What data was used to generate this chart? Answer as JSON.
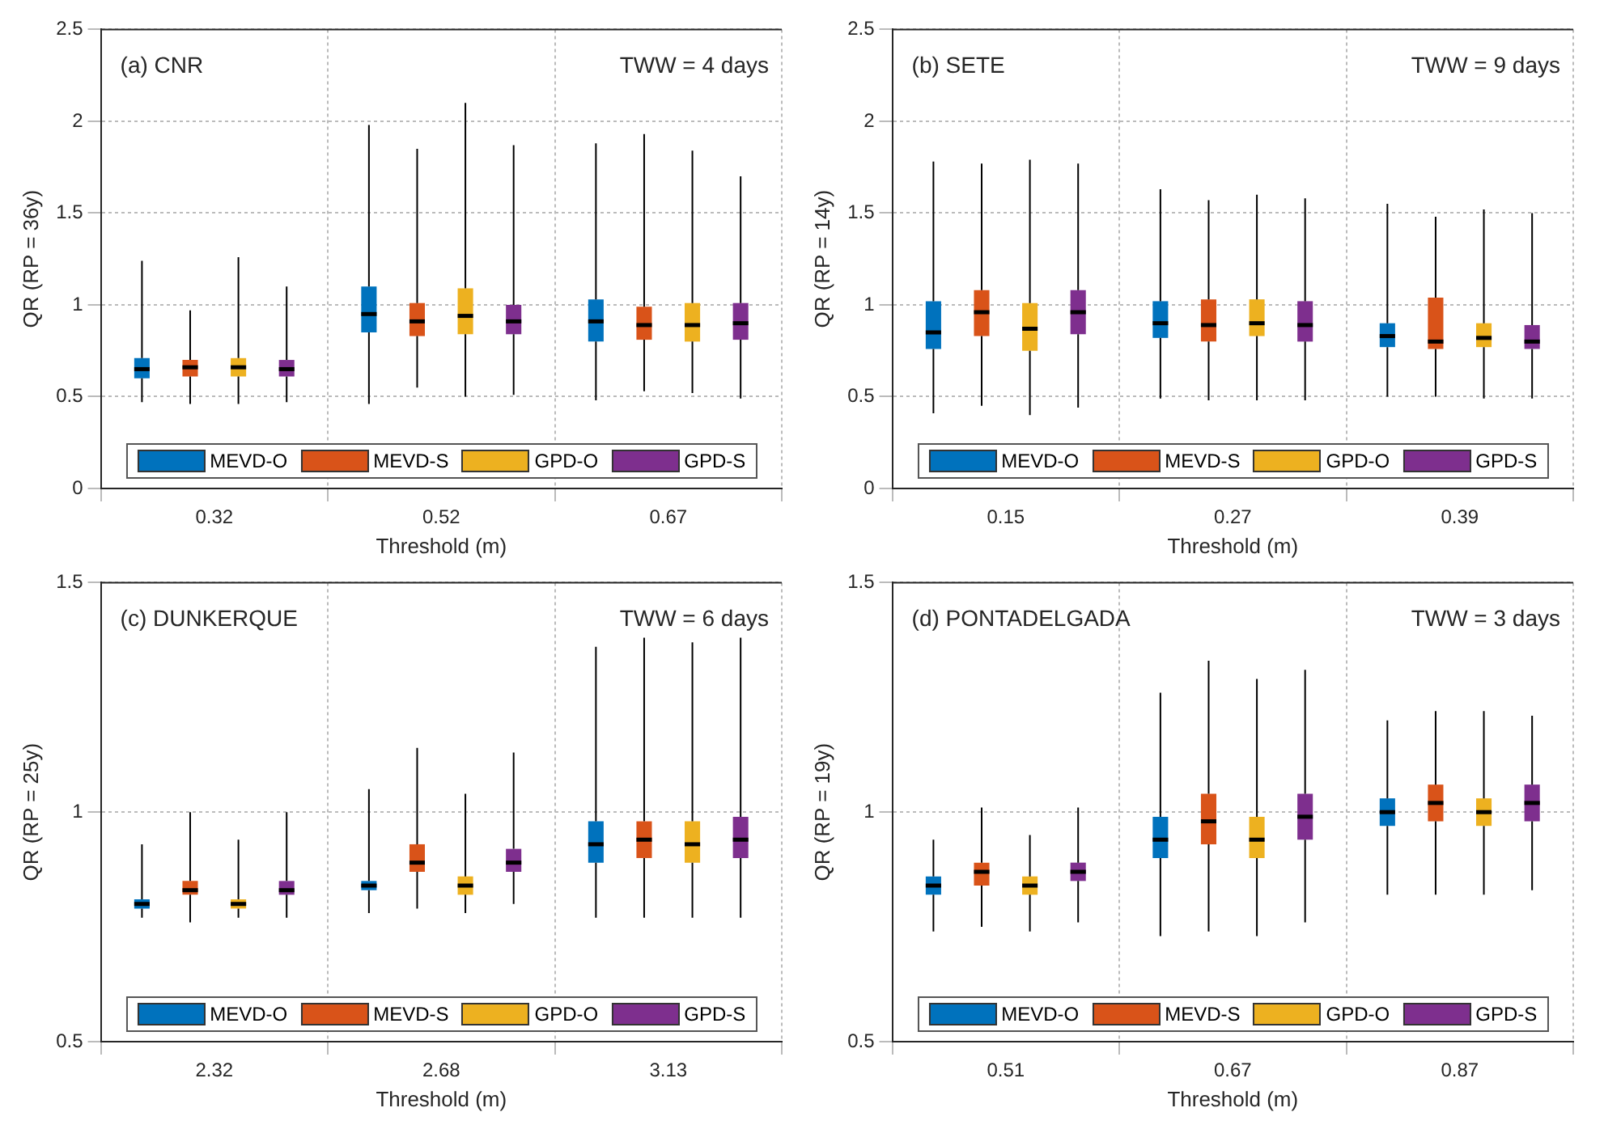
{
  "chart_data": [
    {
      "type": "box",
      "annotations": [
        "(a) CNR",
        "TWW = 4 days"
      ],
      "xlabel": "Threshold (m)",
      "ylabel": "QR (RP = 36y)",
      "categories": [
        "0.32",
        "0.52",
        "0.67"
      ],
      "ylim": [
        0,
        2.5
      ],
      "yticks": [
        0,
        0.5,
        1,
        1.5,
        2,
        2.5
      ],
      "grid": true,
      "legend": "bottom",
      "series": [
        {
          "name": "MEVD-O",
          "color": "#0072bd",
          "boxes": [
            {
              "low": 0.47,
              "q1": 0.6,
              "median": 0.65,
              "q3": 0.71,
              "high": 1.24
            },
            {
              "low": 0.46,
              "q1": 0.85,
              "median": 0.95,
              "q3": 1.1,
              "high": 1.98
            },
            {
              "low": 0.48,
              "q1": 0.8,
              "median": 0.91,
              "q3": 1.03,
              "high": 1.88
            }
          ]
        },
        {
          "name": "MEVD-S",
          "color": "#d95319",
          "boxes": [
            {
              "low": 0.46,
              "q1": 0.61,
              "median": 0.66,
              "q3": 0.7,
              "high": 0.97
            },
            {
              "low": 0.55,
              "q1": 0.83,
              "median": 0.91,
              "q3": 1.01,
              "high": 1.85
            },
            {
              "low": 0.53,
              "q1": 0.81,
              "median": 0.89,
              "q3": 0.99,
              "high": 1.93
            }
          ]
        },
        {
          "name": "GPD-O",
          "color": "#edb120",
          "boxes": [
            {
              "low": 0.46,
              "q1": 0.61,
              "median": 0.66,
              "q3": 0.71,
              "high": 1.26
            },
            {
              "low": 0.5,
              "q1": 0.84,
              "median": 0.94,
              "q3": 1.09,
              "high": 2.1
            },
            {
              "low": 0.52,
              "q1": 0.8,
              "median": 0.89,
              "q3": 1.01,
              "high": 1.84
            }
          ]
        },
        {
          "name": "GPD-S",
          "color": "#7e2f8e",
          "boxes": [
            {
              "low": 0.47,
              "q1": 0.61,
              "median": 0.65,
              "q3": 0.7,
              "high": 1.1
            },
            {
              "low": 0.51,
              "q1": 0.84,
              "median": 0.91,
              "q3": 1.0,
              "high": 1.87
            },
            {
              "low": 0.49,
              "q1": 0.81,
              "median": 0.9,
              "q3": 1.01,
              "high": 1.7
            }
          ]
        }
      ]
    },
    {
      "type": "box",
      "annotations": [
        "(b) SETE",
        "TWW = 9 days"
      ],
      "xlabel": "Threshold (m)",
      "ylabel": "QR (RP = 14y)",
      "categories": [
        "0.15",
        "0.27",
        "0.39"
      ],
      "ylim": [
        0,
        2.5
      ],
      "yticks": [
        0,
        0.5,
        1,
        1.5,
        2,
        2.5
      ],
      "grid": true,
      "legend": "bottom",
      "series": [
        {
          "name": "MEVD-O",
          "color": "#0072bd",
          "boxes": [
            {
              "low": 0.41,
              "q1": 0.76,
              "median": 0.85,
              "q3": 1.02,
              "high": 1.78
            },
            {
              "low": 0.49,
              "q1": 0.82,
              "median": 0.9,
              "q3": 1.02,
              "high": 1.63
            },
            {
              "low": 0.5,
              "q1": 0.77,
              "median": 0.83,
              "q3": 0.9,
              "high": 1.55
            }
          ]
        },
        {
          "name": "MEVD-S",
          "color": "#d95319",
          "boxes": [
            {
              "low": 0.45,
              "q1": 0.83,
              "median": 0.96,
              "q3": 1.08,
              "high": 1.77
            },
            {
              "low": 0.48,
              "q1": 0.8,
              "median": 0.89,
              "q3": 1.03,
              "high": 1.57
            },
            {
              "low": 0.5,
              "q1": 0.76,
              "median": 0.8,
              "q3": 1.04,
              "high": 1.48
            }
          ]
        },
        {
          "name": "GPD-O",
          "color": "#edb120",
          "boxes": [
            {
              "low": 0.4,
              "q1": 0.75,
              "median": 0.87,
              "q3": 1.01,
              "high": 1.79
            },
            {
              "low": 0.48,
              "q1": 0.83,
              "median": 0.9,
              "q3": 1.03,
              "high": 1.6
            },
            {
              "low": 0.49,
              "q1": 0.77,
              "median": 0.82,
              "q3": 0.9,
              "high": 1.52
            }
          ]
        },
        {
          "name": "GPD-S",
          "color": "#7e2f8e",
          "boxes": [
            {
              "low": 0.44,
              "q1": 0.84,
              "median": 0.96,
              "q3": 1.08,
              "high": 1.77
            },
            {
              "low": 0.48,
              "q1": 0.8,
              "median": 0.89,
              "q3": 1.02,
              "high": 1.58
            },
            {
              "low": 0.49,
              "q1": 0.76,
              "median": 0.8,
              "q3": 0.89,
              "high": 1.5
            }
          ]
        }
      ]
    },
    {
      "type": "box",
      "annotations": [
        "(c) DUNKERQUE",
        "TWW = 6 days"
      ],
      "xlabel": "Threshold (m)",
      "ylabel": "QR (RP = 25y)",
      "categories": [
        "2.32",
        "2.68",
        "3.13"
      ],
      "ylim": [
        0.5,
        1.5
      ],
      "yticks": [
        0.5,
        1,
        1.5
      ],
      "grid": true,
      "legend": "bottom",
      "series": [
        {
          "name": "MEVD-O",
          "color": "#0072bd",
          "boxes": [
            {
              "low": 0.77,
              "q1": 0.79,
              "median": 0.8,
              "q3": 0.81,
              "high": 0.93
            },
            {
              "low": 0.78,
              "q1": 0.83,
              "median": 0.84,
              "q3": 0.85,
              "high": 1.05
            },
            {
              "low": 0.77,
              "q1": 0.89,
              "median": 0.93,
              "q3": 0.98,
              "high": 1.36
            }
          ]
        },
        {
          "name": "MEVD-S",
          "color": "#d95319",
          "boxes": [
            {
              "low": 0.76,
              "q1": 0.82,
              "median": 0.83,
              "q3": 0.85,
              "high": 1.0
            },
            {
              "low": 0.79,
              "q1": 0.87,
              "median": 0.89,
              "q3": 0.93,
              "high": 1.14
            },
            {
              "low": 0.77,
              "q1": 0.9,
              "median": 0.94,
              "q3": 0.98,
              "high": 1.38
            }
          ]
        },
        {
          "name": "GPD-O",
          "color": "#edb120",
          "boxes": [
            {
              "low": 0.77,
              "q1": 0.79,
              "median": 0.8,
              "q3": 0.81,
              "high": 0.94
            },
            {
              "low": 0.78,
              "q1": 0.82,
              "median": 0.84,
              "q3": 0.86,
              "high": 1.04
            },
            {
              "low": 0.77,
              "q1": 0.89,
              "median": 0.93,
              "q3": 0.98,
              "high": 1.37
            }
          ]
        },
        {
          "name": "GPD-S",
          "color": "#7e2f8e",
          "boxes": [
            {
              "low": 0.77,
              "q1": 0.82,
              "median": 0.83,
              "q3": 0.85,
              "high": 1.0
            },
            {
              "low": 0.8,
              "q1": 0.87,
              "median": 0.89,
              "q3": 0.92,
              "high": 1.13
            },
            {
              "low": 0.77,
              "q1": 0.9,
              "median": 0.94,
              "q3": 0.99,
              "high": 1.38
            }
          ]
        }
      ]
    },
    {
      "type": "box",
      "annotations": [
        "(d) PONTADELGADA",
        "TWW = 3 days"
      ],
      "xlabel": "Threshold (m)",
      "ylabel": "QR (RP = 19y)",
      "categories": [
        "0.51",
        "0.67",
        "0.87"
      ],
      "ylim": [
        0.5,
        1.5
      ],
      "yticks": [
        0.5,
        1,
        1.5
      ],
      "grid": true,
      "legend": "bottom",
      "series": [
        {
          "name": "MEVD-O",
          "color": "#0072bd",
          "boxes": [
            {
              "low": 0.74,
              "q1": 0.82,
              "median": 0.84,
              "q3": 0.86,
              "high": 0.94
            },
            {
              "low": 0.73,
              "q1": 0.9,
              "median": 0.94,
              "q3": 0.99,
              "high": 1.26
            },
            {
              "low": 0.82,
              "q1": 0.97,
              "median": 1.0,
              "q3": 1.03,
              "high": 1.2
            }
          ]
        },
        {
          "name": "MEVD-S",
          "color": "#d95319",
          "boxes": [
            {
              "low": 0.75,
              "q1": 0.84,
              "median": 0.87,
              "q3": 0.89,
              "high": 1.01
            },
            {
              "low": 0.74,
              "q1": 0.93,
              "median": 0.98,
              "q3": 1.04,
              "high": 1.33
            },
            {
              "low": 0.82,
              "q1": 0.98,
              "median": 1.02,
              "q3": 1.06,
              "high": 1.22
            }
          ]
        },
        {
          "name": "GPD-O",
          "color": "#edb120",
          "boxes": [
            {
              "low": 0.74,
              "q1": 0.82,
              "median": 0.84,
              "q3": 0.86,
              "high": 0.95
            },
            {
              "low": 0.73,
              "q1": 0.9,
              "median": 0.94,
              "q3": 0.99,
              "high": 1.29
            },
            {
              "low": 0.82,
              "q1": 0.97,
              "median": 1.0,
              "q3": 1.03,
              "high": 1.22
            }
          ]
        },
        {
          "name": "GPD-S",
          "color": "#7e2f8e",
          "boxes": [
            {
              "low": 0.76,
              "q1": 0.85,
              "median": 0.87,
              "q3": 0.89,
              "high": 1.01
            },
            {
              "low": 0.76,
              "q1": 0.94,
              "median": 0.99,
              "q3": 1.04,
              "high": 1.31
            },
            {
              "low": 0.83,
              "q1": 0.98,
              "median": 1.02,
              "q3": 1.06,
              "high": 1.21
            }
          ]
        }
      ]
    }
  ]
}
